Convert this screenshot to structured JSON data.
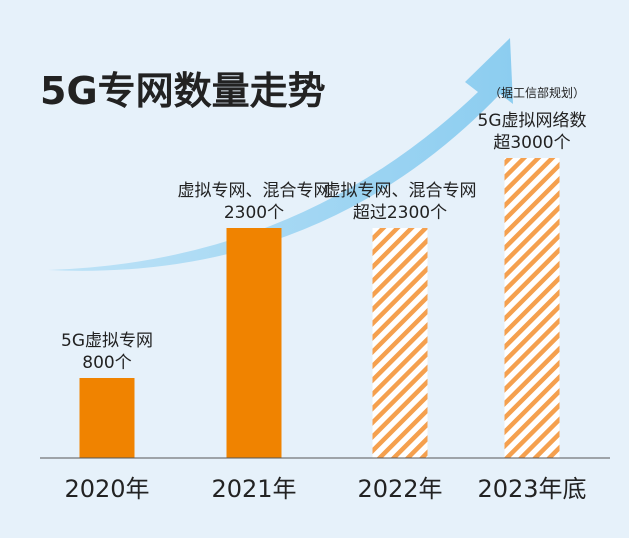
{
  "colors": {
    "background": "#e6f1fa",
    "actual_bar": "#f08300",
    "planned_stripe": "#f5a04e",
    "arrow": "#9dd3f2",
    "text": "#222222"
  },
  "chart_data": {
    "type": "bar",
    "title": "5G专网数量走势",
    "categories": [
      "2020年",
      "2021年",
      "2022年",
      "2023年底"
    ],
    "values": [
      800,
      2300,
      2300,
      3000
    ],
    "styles": [
      "solid",
      "solid",
      "hatched",
      "hatched"
    ],
    "annotations": [
      [
        "5G虚拟专网",
        "800个"
      ],
      [
        "虚拟专网、混合专网",
        "2300个"
      ],
      [
        "虚拟专网、混合专网",
        "超过2300个"
      ],
      [
        "5G虚拟网络数",
        "超3000个"
      ]
    ],
    "note": "（据工信部规划）",
    "trend_arrow": true,
    "grid": false
  }
}
